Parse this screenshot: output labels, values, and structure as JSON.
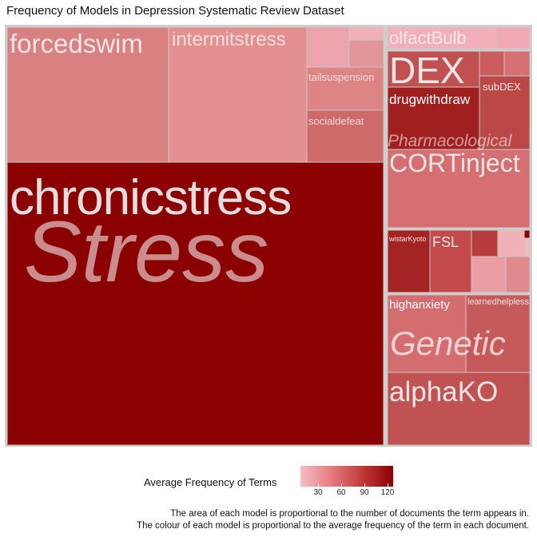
{
  "page": {
    "title": "Frequency of Models in Depression Systematic Review Dataset",
    "legend_title": "Average Frequency of Terms",
    "caption_line1": "The area of each model is proportional to the number of documents the term appears in.",
    "caption_line2": "The colour of each model is proportional to the average frequency of the term in each document."
  },
  "chart_data": {
    "type": "treemap",
    "title": "Frequency of Models in Depression Systematic Review Dataset",
    "legend": {
      "title": "Average Frequency of Terms",
      "ticks": [
        30,
        60,
        90,
        120
      ],
      "range": [
        10,
        130
      ],
      "low_color": "#f7bdc5",
      "high_color": "#8b0000"
    },
    "groups": [
      {
        "name": "Stress",
        "children": [
          {
            "label": "chronicstress",
            "color": "#8b0000"
          },
          {
            "label": "forcedswim",
            "color": "#d98080"
          },
          {
            "label": "intermitstress",
            "color": "#e49090"
          },
          {
            "label": "tailsuspension",
            "color": "#dd8484"
          },
          {
            "label": "socialdefeat",
            "color": "#cf6a6a"
          },
          {
            "label": "",
            "color": "#eda3ab"
          },
          {
            "label": "",
            "color": "#f1b0b7"
          },
          {
            "label": "",
            "color": "#e29599"
          }
        ]
      },
      {
        "name": "Pharmacological",
        "children": [
          {
            "label": "DEX",
            "color": "#c15050"
          },
          {
            "label": "drugwithdraw",
            "color": "#a02020"
          },
          {
            "label": "subDEX",
            "color": "#bb4747"
          },
          {
            "label": "CORTinject",
            "color": "#d66f71"
          },
          {
            "label": "",
            "color": "#cb5d5d"
          }
        ]
      },
      {
        "name": "olfactBulb",
        "children": [
          {
            "label": "olfactBulb",
            "color": "#f2b1ba"
          },
          {
            "label": "",
            "color": "#f0a9b2"
          }
        ]
      },
      {
        "name": "",
        "children": [
          {
            "label": "wistarKyoto",
            "color": "#a42424"
          },
          {
            "label": "FSL",
            "color": "#c24a4a"
          },
          {
            "label": "",
            "color": "#b83c3c"
          },
          {
            "label": "",
            "color": "#f2b0b8"
          },
          {
            "label": "",
            "color": "#ea9da3"
          },
          {
            "label": "",
            "color": "#e08a8e"
          },
          {
            "label": "",
            "color": "#f4b8c0"
          },
          {
            "label": "",
            "color": "#8b0000"
          }
        ]
      },
      {
        "name": "Genetic",
        "children": [
          {
            "label": "highanxiety",
            "color": "#d36d70"
          },
          {
            "label": "learnedhelpless",
            "color": "#c65a5a"
          },
          {
            "label": "",
            "color": "#c55656"
          }
        ]
      },
      {
        "name": "",
        "children": [
          {
            "label": "alphaKO",
            "color": "#c05252"
          }
        ]
      }
    ]
  }
}
